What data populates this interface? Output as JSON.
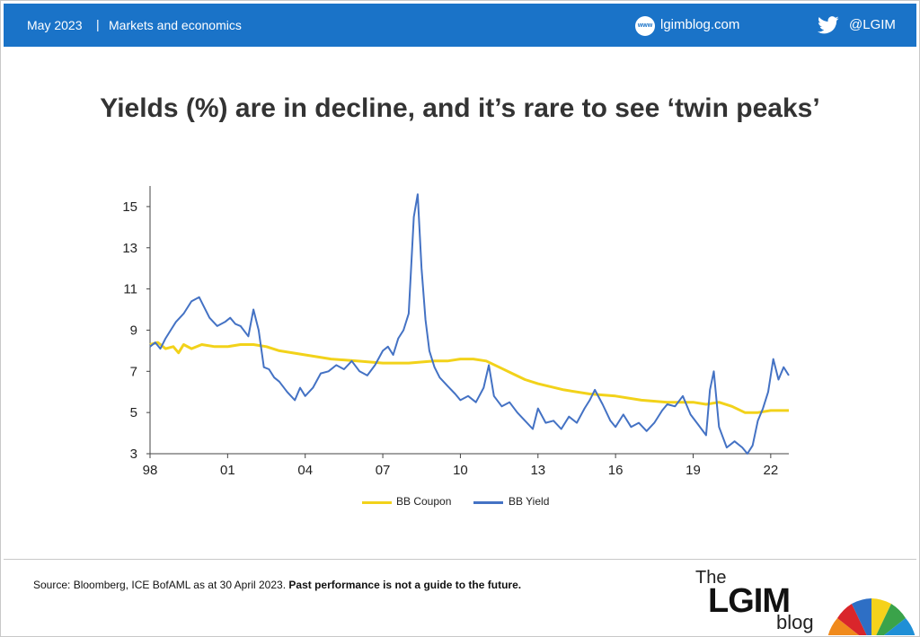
{
  "header": {
    "date": "May 2023",
    "separator": "|",
    "category": "Markets and economics",
    "site_icon": "globe-www-icon",
    "site": "lgimblog.com",
    "social_icon": "twitter-bird-icon",
    "handle": "@LGIM"
  },
  "title": "Yields (%) are in decline, and it’s rare to see ‘twin peaks’",
  "chart_data": {
    "type": "line",
    "title": "Yields (%) are in decline, and it’s rare to see ‘twin peaks’",
    "xlabel": "",
    "ylabel": "",
    "xlim": [
      1998.0,
      2022.7
    ],
    "ylim": [
      3,
      16
    ],
    "y_ticks": [
      "3",
      "5",
      "7",
      "9",
      "11",
      "13",
      "15"
    ],
    "x_ticks": [
      "98",
      "01",
      "04",
      "07",
      "10",
      "13",
      "16",
      "19",
      "22"
    ],
    "x_tick_years": [
      1998,
      2001,
      2004,
      2007,
      2010,
      2013,
      2016,
      2019,
      2022
    ],
    "y_tick_values": [
      3,
      5,
      7,
      9,
      11,
      13,
      15
    ],
    "grid": false,
    "legend": "bottom-center",
    "series": [
      {
        "name": "BB Coupon",
        "color": "#f2d21a",
        "x": [
          1998.0,
          1998.3,
          1998.6,
          1998.9,
          1999.1,
          1999.3,
          1999.6,
          2000.0,
          2000.5,
          2001.0,
          2001.5,
          2002.0,
          2002.5,
          2003.0,
          2004.0,
          2005.0,
          2006.0,
          2007.0,
          2008.0,
          2009.0,
          2009.5,
          2010.0,
          2010.5,
          2011.0,
          2011.5,
          2012.0,
          2012.5,
          2013.0,
          2014.0,
          2015.0,
          2016.0,
          2017.0,
          2018.0,
          2019.0,
          2019.5,
          2020.0,
          2020.5,
          2021.0,
          2021.5,
          2022.0,
          2022.7
        ],
        "values": [
          8.3,
          8.4,
          8.1,
          8.2,
          7.9,
          8.3,
          8.1,
          8.3,
          8.2,
          8.2,
          8.3,
          8.3,
          8.2,
          8.0,
          7.8,
          7.6,
          7.5,
          7.4,
          7.4,
          7.5,
          7.5,
          7.6,
          7.6,
          7.5,
          7.2,
          6.9,
          6.6,
          6.4,
          6.1,
          5.9,
          5.8,
          5.6,
          5.5,
          5.5,
          5.4,
          5.5,
          5.3,
          5.0,
          5.0,
          5.1,
          5.1
        ]
      },
      {
        "name": "BB Yield",
        "color": "#4472c4",
        "x": [
          1998.0,
          1998.2,
          1998.4,
          1998.6,
          1998.8,
          1999.0,
          1999.3,
          1999.6,
          1999.9,
          2000.1,
          2000.3,
          2000.6,
          2000.9,
          2001.1,
          2001.3,
          2001.5,
          2001.8,
          2002.0,
          2002.2,
          2002.4,
          2002.6,
          2002.8,
          2003.0,
          2003.3,
          2003.6,
          2003.8,
          2004.0,
          2004.3,
          2004.6,
          2004.9,
          2005.2,
          2005.5,
          2005.8,
          2006.1,
          2006.4,
          2006.7,
          2007.0,
          2007.2,
          2007.4,
          2007.6,
          2007.8,
          2008.0,
          2008.2,
          2008.35,
          2008.5,
          2008.65,
          2008.8,
          2009.0,
          2009.2,
          2009.5,
          2009.8,
          2010.0,
          2010.3,
          2010.6,
          2010.9,
          2011.1,
          2011.3,
          2011.6,
          2011.9,
          2012.2,
          2012.5,
          2012.8,
          2013.0,
          2013.3,
          2013.6,
          2013.9,
          2014.2,
          2014.5,
          2014.8,
          2015.0,
          2015.2,
          2015.5,
          2015.8,
          2016.0,
          2016.3,
          2016.6,
          2016.9,
          2017.2,
          2017.5,
          2017.8,
          2018.0,
          2018.3,
          2018.6,
          2018.9,
          2019.2,
          2019.5,
          2019.65,
          2019.8,
          2020.0,
          2020.3,
          2020.6,
          2020.9,
          2021.1,
          2021.3,
          2021.5,
          2021.7,
          2021.9,
          2022.1,
          2022.3,
          2022.5,
          2022.7
        ],
        "values": [
          8.2,
          8.4,
          8.1,
          8.6,
          9.0,
          9.4,
          9.8,
          10.4,
          10.6,
          10.1,
          9.6,
          9.2,
          9.4,
          9.6,
          9.3,
          9.2,
          8.7,
          10.0,
          9.0,
          7.2,
          7.1,
          6.7,
          6.5,
          6.0,
          5.6,
          6.2,
          5.8,
          6.2,
          6.9,
          7.0,
          7.3,
          7.1,
          7.5,
          7.0,
          6.8,
          7.3,
          8.0,
          8.2,
          7.8,
          8.6,
          9.0,
          9.8,
          14.5,
          15.6,
          12.0,
          9.5,
          8.0,
          7.2,
          6.7,
          6.3,
          5.9,
          5.6,
          5.8,
          5.5,
          6.2,
          7.3,
          5.8,
          5.3,
          5.5,
          5.0,
          4.6,
          4.2,
          5.2,
          4.5,
          4.6,
          4.2,
          4.8,
          4.5,
          5.2,
          5.6,
          6.1,
          5.4,
          4.6,
          4.3,
          4.9,
          4.3,
          4.5,
          4.1,
          4.5,
          5.1,
          5.4,
          5.3,
          5.8,
          4.9,
          4.4,
          3.9,
          6.1,
          7.0,
          4.3,
          3.3,
          3.6,
          3.3,
          3.0,
          3.4,
          4.6,
          5.2,
          6.0,
          7.6,
          6.6,
          7.2,
          6.8
        ]
      }
    ]
  },
  "legend": {
    "coupon_label": "BB Coupon",
    "yield_label": "BB Yield",
    "coupon_color": "#f2d21a",
    "yield_color": "#4472c4"
  },
  "footer": {
    "source": "Source: Bloomberg, ICE BofAML as at 30 April 2023.",
    "disclaimer": "Past performance is not a guide to the future."
  },
  "logo": {
    "the": "The",
    "lgim": "LGIM",
    "blog": "blog"
  }
}
